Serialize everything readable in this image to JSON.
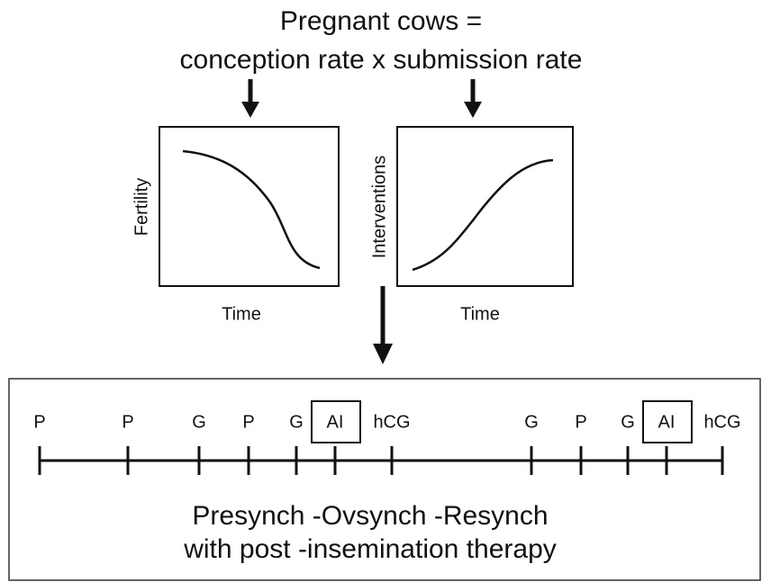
{
  "header": {
    "title_lines": [
      "Pregnant cows =",
      "conception rate x submission rate"
    ]
  },
  "panels": [
    {
      "y_label": "Fertility",
      "x_label": "Time"
    },
    {
      "y_label": "Interventions",
      "x_label": "Time"
    }
  ],
  "timeline": {
    "events": [
      {
        "label": "P"
      },
      {
        "label": "P"
      },
      {
        "label": "G"
      },
      {
        "label": "P"
      },
      {
        "label": "G"
      },
      {
        "label": "AI",
        "boxed": true
      },
      {
        "label": "hCG"
      },
      {
        "label": "G"
      },
      {
        "label": "P"
      },
      {
        "label": "G"
      },
      {
        "label": "AI",
        "boxed": true
      },
      {
        "label": "hCG"
      }
    ],
    "caption_lines": [
      "Presynch -Ovsynch -Resynch",
      "with post -insemination therapy"
    ]
  }
}
